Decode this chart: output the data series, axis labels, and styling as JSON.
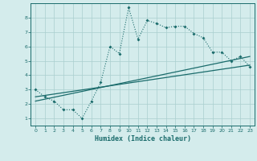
{
  "title": "",
  "xlabel": "Humidex (Indice chaleur)",
  "ylabel": "",
  "background_color": "#d4ecec",
  "grid_color": "#aacfcf",
  "line_color": "#1a6b6b",
  "xlim": [
    -0.5,
    23.5
  ],
  "ylim": [
    0.5,
    9.0
  ],
  "xticks": [
    0,
    1,
    2,
    3,
    4,
    5,
    6,
    7,
    8,
    9,
    10,
    11,
    12,
    13,
    14,
    15,
    16,
    17,
    18,
    19,
    20,
    21,
    22,
    23
  ],
  "yticks": [
    1,
    2,
    3,
    4,
    5,
    6,
    7,
    8
  ],
  "curve1_x": [
    0,
    1,
    2,
    3,
    4,
    5,
    6,
    7,
    8,
    9,
    10,
    11,
    12,
    13,
    14,
    15,
    16,
    17,
    18,
    19,
    20,
    21,
    22,
    23
  ],
  "curve1_y": [
    3.0,
    2.5,
    2.2,
    1.6,
    1.6,
    1.0,
    2.2,
    3.5,
    6.0,
    5.5,
    8.7,
    6.5,
    7.8,
    7.6,
    7.3,
    7.4,
    7.4,
    6.9,
    6.6,
    5.6,
    5.6,
    5.0,
    5.3,
    4.6
  ],
  "curve2_x": [
    0,
    23
  ],
  "curve2_y": [
    2.2,
    5.3
  ],
  "curve3_x": [
    0,
    23
  ],
  "curve3_y": [
    2.5,
    4.7
  ]
}
